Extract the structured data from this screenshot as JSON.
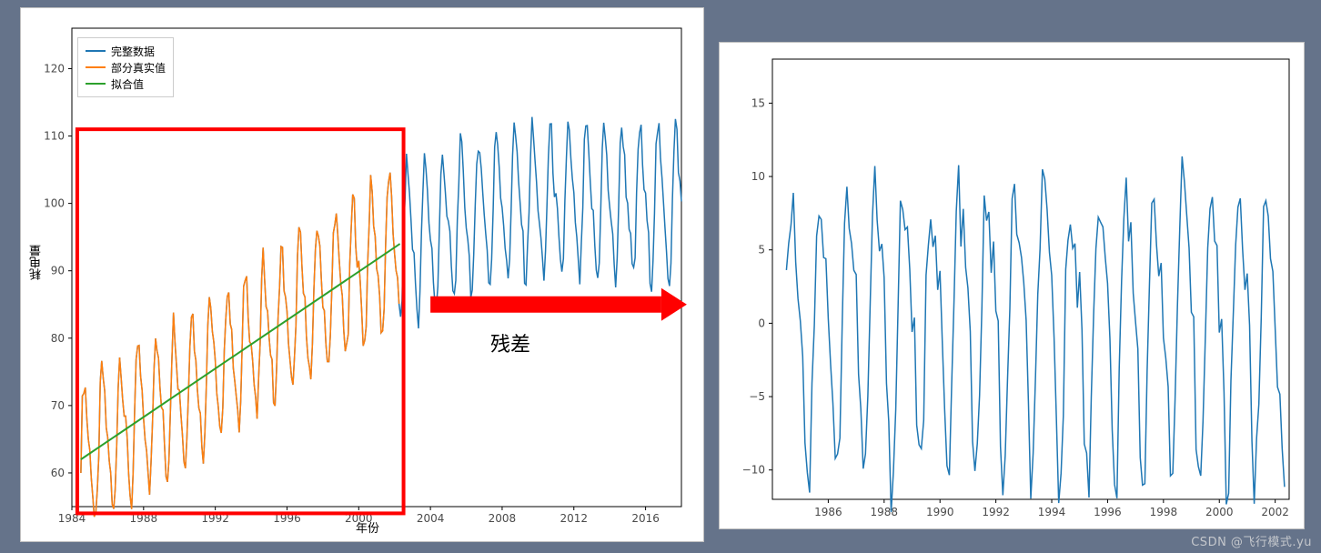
{
  "background_color": "#65738a",
  "panel_background": "#ffffff",
  "left_chart": {
    "type": "line",
    "xlabel": "年份",
    "ylabel": "耗电量",
    "label_fontsize": 13,
    "xlim": [
      1984,
      2018
    ],
    "ylim": [
      55,
      126
    ],
    "xticks": [
      1984,
      1988,
      1992,
      1996,
      2000,
      2004,
      2008,
      2012,
      2016
    ],
    "yticks": [
      60,
      70,
      80,
      90,
      100,
      110,
      120
    ],
    "grid_color": "#ffffff",
    "spine_color": "#000000",
    "plot_bg": "#ffffff",
    "legend": {
      "position": "upper-left",
      "border_color": "#cccccc",
      "items": [
        {
          "label": "完整数据",
          "color": "#1f77b4"
        },
        {
          "label": "部分真实值",
          "color": "#ff7f0e"
        },
        {
          "label": "拟合值",
          "color": "#2ca02c"
        }
      ]
    },
    "series_full": {
      "color": "#1f77b4",
      "line_width": 1.5,
      "x_start": 1984.5,
      "x_end": 2018,
      "step_per_year": 12,
      "trend_start": 62,
      "trend_mid": 94,
      "trend_plateau_from": 2003,
      "trend_plateau_value": 100,
      "seasonal_amp": 10,
      "noise_amp": 2
    },
    "series_partial": {
      "color": "#ff7f0e",
      "line_width": 1.5,
      "x_start": 1984.5,
      "x_end": 2002.3,
      "overlays": "series_full"
    },
    "series_fit": {
      "color": "#2ca02c",
      "line_width": 2,
      "x": [
        1984.5,
        2002.3
      ],
      "y": [
        62,
        94
      ]
    },
    "highlight_box": {
      "color": "#ff0000",
      "line_width": 4,
      "x": [
        1984.3,
        2002.5
      ],
      "y": [
        54,
        111
      ]
    },
    "annotation_arrow": {
      "color": "#ff0000",
      "from_x": 2004,
      "to_x": 2018.3,
      "y": 85,
      "width": 18,
      "label": "残差",
      "label_fontsize": 22
    }
  },
  "right_chart": {
    "type": "line",
    "xlim": [
      1984,
      2002.5
    ],
    "ylim": [
      -12,
      18
    ],
    "xticks": [
      1986,
      1988,
      1990,
      1992,
      1994,
      1996,
      1998,
      2000,
      2002
    ],
    "yticks": [
      -10,
      -5,
      0,
      5,
      10,
      15
    ],
    "tick_fontsize": 12,
    "spine_color": "#000000",
    "plot_bg": "#ffffff",
    "series": {
      "color": "#1f77b4",
      "line_width": 1.5,
      "x_start": 1984.5,
      "x_end": 2002.3,
      "step_per_year": 12,
      "seasonal_amp": 9,
      "noise_amp": 2.5
    }
  },
  "watermark": "CSDN @飞行模式.yu"
}
